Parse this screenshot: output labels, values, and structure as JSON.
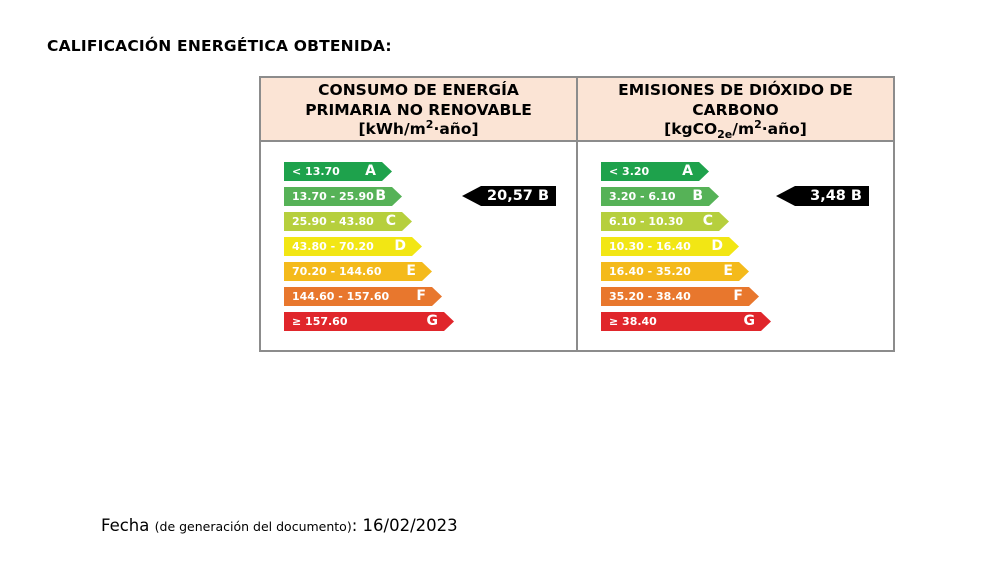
{
  "heading": "CALIFICACIÓN ENERGÉTICA OBTENIDA:",
  "colors": {
    "A": "#1ea24c",
    "B": "#56b257",
    "C": "#b6cf3d",
    "D": "#f2e614",
    "E": "#f4ba1b",
    "F": "#e8772d",
    "G": "#e0262b"
  },
  "energy": {
    "title_line1": "CONSUMO DE ENERGÍA",
    "title_line2": "PRIMARIA NO RENOVABLE",
    "unit_prefix": "[kWh/m",
    "unit_sup": "2",
    "unit_suffix": "·año]",
    "rating": "20,57 B",
    "rated_class": "B",
    "scale": [
      {
        "range": "< 13.70",
        "letter": "A"
      },
      {
        "range": "13.70 - 25.90",
        "letter": "B"
      },
      {
        "range": "25.90 - 43.80",
        "letter": "C"
      },
      {
        "range": "43.80 - 70.20",
        "letter": "D"
      },
      {
        "range": "70.20 - 144.60",
        "letter": "E"
      },
      {
        "range": "144.60 - 157.60",
        "letter": "F"
      },
      {
        "range": "≥ 157.60",
        "letter": "G"
      }
    ]
  },
  "emissions": {
    "title_line1": "EMISIONES DE DIÓXIDO DE",
    "title_line2": "CARBONO",
    "unit_prefix": "[kgCO",
    "unit_sub": "2e",
    "unit_mid": "/m",
    "unit_sup": "2",
    "unit_suffix": "·año]",
    "rating": "3,48 B",
    "rated_class": "B",
    "scale": [
      {
        "range": "< 3.20",
        "letter": "A"
      },
      {
        "range": "3.20 - 6.10",
        "letter": "B"
      },
      {
        "range": "6.10 - 10.30",
        "letter": "C"
      },
      {
        "range": "10.30 - 16.40",
        "letter": "D"
      },
      {
        "range": "16.40 - 35.20",
        "letter": "E"
      },
      {
        "range": "35.20 - 38.40",
        "letter": "F"
      },
      {
        "range": "≥ 38.40",
        "letter": "G"
      }
    ]
  },
  "footer": {
    "label": "Fecha",
    "note": "(de generación del documento)",
    "separator": ":",
    "date": "16/02/2023"
  }
}
